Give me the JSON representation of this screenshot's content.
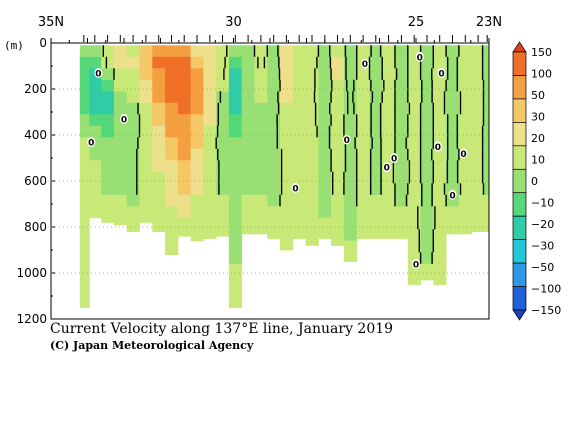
{
  "chart_data": {
    "type": "heatmap",
    "title": "Current Velocity along 137°E line, January 2019",
    "credit": "(C) Japan Meteorological Agency",
    "ylabel": "(m)",
    "x_ticks": [
      {
        "label": "35N",
        "lat": 35
      },
      {
        "label": "30",
        "lat": 30
      },
      {
        "label": "25",
        "lat": 25
      },
      {
        "label": "23N",
        "lat": 23
      }
    ],
    "y_ticks": [
      0,
      200,
      400,
      600,
      800,
      1000,
      1200
    ],
    "xlim": [
      35,
      23
    ],
    "ylim": [
      0,
      1200
    ],
    "colorbar": {
      "labels": [
        "150",
        "100",
        "50",
        "30",
        "20",
        "10",
        "0",
        "−10",
        "−20",
        "−30",
        "−50",
        "−100",
        "−150"
      ],
      "colors": [
        "#e0401c",
        "#f07028",
        "#f4a040",
        "#f4c866",
        "#eee08a",
        "#c8e878",
        "#98e074",
        "#54d87a",
        "#30cca8",
        "#20c8d8",
        "#2c98e8",
        "#2060d8",
        "#1840c0"
      ]
    },
    "profiles": [
      {
        "lat": 34.1,
        "bottom": 1150,
        "v": [
          -10,
          -12,
          -15,
          -18,
          -20,
          -12,
          -10,
          -5,
          0,
          0,
          0,
          0,
          0,
          0,
          0,
          0,
          0,
          0,
          0,
          0,
          0,
          0,
          0,
          0
        ]
      },
      {
        "lat": 33.8,
        "bottom": 760,
        "v": [
          -10,
          -20,
          -25,
          -30,
          -30,
          -22,
          -15,
          -10,
          -5,
          -2,
          0,
          0,
          0,
          0,
          0,
          0,
          0,
          0,
          0,
          0,
          0,
          0,
          0,
          0
        ]
      },
      {
        "lat": 33.45,
        "bottom": 780,
        "v": [
          5,
          2,
          -5,
          -15,
          -25,
          -25,
          -20,
          -12,
          -8,
          -5,
          -5,
          -5,
          -5,
          0,
          0,
          0,
          0,
          0,
          0,
          0,
          0,
          0,
          0,
          0
        ]
      },
      {
        "lat": 33.1,
        "bottom": 790,
        "v": [
          12,
          10,
          5,
          0,
          -5,
          -10,
          -10,
          -8,
          -5,
          -3,
          -2,
          -2,
          -2,
          0,
          0,
          0,
          0,
          0,
          0,
          0,
          0,
          0,
          0,
          0
        ]
      },
      {
        "lat": 32.75,
        "bottom": 820,
        "v": [
          8,
          10,
          8,
          5,
          0,
          -5,
          -5,
          -5,
          -3,
          -2,
          -2,
          -2,
          -2,
          -2,
          0,
          0,
          0,
          0,
          0,
          0,
          0,
          0,
          0,
          0
        ]
      },
      {
        "lat": 32.4,
        "bottom": 780,
        "v": [
          20,
          25,
          20,
          15,
          10,
          8,
          5,
          5,
          5,
          5,
          5,
          5,
          5,
          0,
          0,
          0,
          0,
          0,
          0,
          0,
          0,
          0,
          0,
          0
        ]
      },
      {
        "lat": 32.05,
        "bottom": 820,
        "v": [
          40,
          50,
          45,
          35,
          30,
          25,
          20,
          15,
          12,
          10,
          10,
          8,
          5,
          3,
          0,
          0,
          0,
          0,
          0,
          0,
          0,
          0,
          0,
          0
        ]
      },
      {
        "lat": 31.7,
        "bottom": 920,
        "v": [
          40,
          60,
          60,
          55,
          50,
          40,
          35,
          30,
          25,
          20,
          18,
          15,
          12,
          10,
          8,
          5,
          0,
          0,
          0,
          0,
          0,
          0,
          0,
          0
        ]
      },
      {
        "lat": 31.35,
        "bottom": 840,
        "v": [
          30,
          50,
          60,
          60,
          55,
          50,
          45,
          40,
          35,
          30,
          28,
          25,
          20,
          15,
          10,
          5,
          0,
          0,
          0,
          0,
          0,
          0,
          0,
          0
        ]
      },
      {
        "lat": 31.0,
        "bottom": 860,
        "v": [
          15,
          25,
          30,
          30,
          30,
          30,
          25,
          22,
          20,
          18,
          15,
          12,
          10,
          8,
          5,
          3,
          0,
          0,
          0,
          0,
          0,
          0,
          0,
          0
        ]
      },
      {
        "lat": 30.65,
        "bottom": 850,
        "v": [
          10,
          15,
          15,
          15,
          10,
          10,
          10,
          8,
          5,
          5,
          5,
          5,
          5,
          3,
          0,
          0,
          0,
          0,
          0,
          0,
          0,
          0,
          0,
          0
        ]
      },
      {
        "lat": 30.3,
        "bottom": 840,
        "v": [
          5,
          5,
          3,
          0,
          -2,
          -5,
          -5,
          -5,
          -5,
          -3,
          -2,
          -2,
          -2,
          0,
          0,
          0,
          0,
          0,
          0,
          0,
          0,
          0,
          0,
          0
        ]
      },
      {
        "lat": 29.95,
        "bottom": 1150,
        "v": [
          -10,
          -20,
          -25,
          -25,
          -30,
          -25,
          -20,
          -15,
          -10,
          -8,
          -5,
          -5,
          -5,
          -5,
          -3,
          -3,
          -3,
          -5,
          -5,
          0,
          0,
          0,
          0,
          0
        ]
      },
      {
        "lat": 29.6,
        "bottom": 830,
        "v": [
          -5,
          -10,
          -10,
          -10,
          -10,
          -5,
          -5,
          -5,
          -3,
          -2,
          -2,
          -2,
          -2,
          0,
          0,
          0,
          0,
          0,
          0,
          0,
          0,
          0,
          0,
          0
        ]
      },
      {
        "lat": 29.25,
        "bottom": 830,
        "v": [
          5,
          3,
          0,
          0,
          0,
          -2,
          -2,
          -5,
          -5,
          -2,
          -2,
          -2,
          -2,
          0,
          0,
          0,
          0,
          0,
          0,
          0,
          0,
          0,
          0,
          0
        ]
      },
      {
        "lat": 28.9,
        "bottom": 850,
        "v": [
          -5,
          -8,
          -10,
          -10,
          -5,
          -5,
          -3,
          -2,
          -2,
          -5,
          -5,
          -5,
          -5,
          -2,
          0,
          0,
          0,
          0,
          0,
          0,
          0,
          0,
          0,
          0
        ]
      },
      {
        "lat": 28.55,
        "bottom": 900,
        "v": [
          10,
          12,
          12,
          10,
          10,
          8,
          8,
          5,
          5,
          3,
          3,
          3,
          3,
          2,
          2,
          0,
          0,
          0,
          0,
          0,
          0,
          0,
          0,
          0
        ]
      },
      {
        "lat": 28.2,
        "bottom": 850,
        "v": [
          5,
          5,
          5,
          5,
          3,
          3,
          3,
          2,
          2,
          2,
          2,
          2,
          2,
          0,
          0,
          0,
          0,
          0,
          0,
          0,
          0,
          0,
          0,
          0
        ]
      },
      {
        "lat": 27.85,
        "bottom": 880,
        "v": [
          5,
          5,
          3,
          3,
          2,
          2,
          2,
          2,
          0,
          0,
          0,
          0,
          0,
          0,
          0,
          0,
          0,
          0,
          0,
          0,
          0,
          0,
          0,
          0
        ]
      },
      {
        "lat": 27.5,
        "bottom": 850,
        "v": [
          -5,
          -8,
          -10,
          -10,
          -8,
          -5,
          -5,
          -3,
          -3,
          -5,
          -5,
          -5,
          -5,
          -3,
          -2,
          0,
          0,
          0,
          0,
          0,
          0,
          0,
          0,
          0
        ]
      },
      {
        "lat": 27.15,
        "bottom": 880,
        "v": [
          8,
          10,
          10,
          8,
          8,
          8,
          5,
          5,
          5,
          5,
          5,
          3,
          3,
          0,
          0,
          0,
          0,
          0,
          0,
          0,
          0,
          0,
          0,
          0
        ]
      },
      {
        "lat": 26.8,
        "bottom": 950,
        "v": [
          -5,
          -5,
          -5,
          -3,
          -2,
          -2,
          -5,
          -5,
          -3,
          -3,
          -3,
          -3,
          -3,
          -2,
          -2,
          -2,
          -2,
          0,
          0,
          0,
          0,
          0,
          0,
          0
        ]
      },
      {
        "lat": 26.45,
        "bottom": 850,
        "v": [
          5,
          5,
          5,
          8,
          8,
          5,
          5,
          5,
          5,
          3,
          3,
          3,
          3,
          2,
          0,
          0,
          0,
          0,
          0,
          0,
          0,
          0,
          0,
          0
        ]
      },
      {
        "lat": 26.1,
        "bottom": 850,
        "v": [
          -3,
          -5,
          -5,
          -5,
          -3,
          -3,
          -3,
          -3,
          -2,
          -2,
          -2,
          -2,
          -2,
          0,
          0,
          0,
          0,
          0,
          0,
          0,
          0,
          0,
          0,
          0
        ]
      },
      {
        "lat": 25.75,
        "bottom": 850,
        "v": [
          5,
          5,
          5,
          3,
          3,
          5,
          5,
          5,
          3,
          3,
          3,
          3,
          3,
          2,
          0,
          0,
          0,
          0,
          0,
          0,
          0,
          0,
          0,
          0
        ]
      },
      {
        "lat": 25.4,
        "bottom": 850,
        "v": [
          -5,
          -5,
          -3,
          -3,
          -3,
          -5,
          -5,
          -5,
          -3,
          -3,
          -5,
          -5,
          -3,
          -2,
          0,
          0,
          0,
          0,
          0,
          0,
          0,
          0,
          0,
          0
        ]
      },
      {
        "lat": 25.05,
        "bottom": 1050,
        "v": [
          5,
          5,
          3,
          3,
          3,
          3,
          5,
          5,
          5,
          3,
          3,
          3,
          3,
          3,
          2,
          2,
          2,
          2,
          2,
          0,
          0,
          0,
          0,
          0
        ]
      },
      {
        "lat": 24.7,
        "bottom": 1030,
        "v": [
          -5,
          -5,
          -3,
          -2,
          -2,
          -3,
          -5,
          -5,
          -5,
          -3,
          -3,
          -3,
          -2,
          -2,
          -5,
          -5,
          -3,
          -3,
          -2,
          0,
          0,
          0,
          0,
          0
        ]
      },
      {
        "lat": 24.35,
        "bottom": 1050,
        "v": [
          5,
          5,
          5,
          3,
          3,
          3,
          5,
          5,
          5,
          5,
          3,
          3,
          3,
          3,
          3,
          3,
          3,
          3,
          3,
          0,
          0,
          0,
          0,
          0
        ]
      },
      {
        "lat": 24.0,
        "bottom": 830,
        "v": [
          -5,
          -3,
          -3,
          -3,
          -5,
          -5,
          -3,
          -3,
          -3,
          -3,
          -2,
          -2,
          -5,
          -3,
          0,
          0,
          0,
          0,
          0,
          0,
          0,
          0,
          0,
          0
        ]
      },
      {
        "lat": 23.65,
        "bottom": 830,
        "v": [
          5,
          5,
          5,
          5,
          3,
          3,
          5,
          5,
          5,
          3,
          3,
          3,
          3,
          0,
          0,
          0,
          0,
          0,
          0,
          0,
          0,
          0,
          0,
          0
        ]
      },
      {
        "lat": 23.3,
        "bottom": 820,
        "v": [
          3,
          3,
          3,
          3,
          3,
          3,
          3,
          3,
          3,
          3,
          3,
          3,
          3,
          0,
          0,
          0,
          0,
          0,
          0,
          0,
          0,
          0,
          0,
          0
        ]
      },
      {
        "lat": 23.05,
        "bottom": 820,
        "v": [
          -3,
          -3,
          -3,
          -2,
          -2,
          -2,
          -2,
          -3,
          -3,
          -3,
          -3,
          -3,
          -2,
          0,
          0,
          0,
          0,
          0,
          0,
          0,
          0,
          0,
          0,
          0
        ]
      }
    ],
    "zero_labels": [
      {
        "lat": 33.7,
        "depth": 130,
        "text": "0"
      },
      {
        "lat": 33.0,
        "depth": 330,
        "text": "0"
      },
      {
        "lat": 33.9,
        "depth": 430,
        "text": "0"
      },
      {
        "lat": 28.3,
        "depth": 630,
        "text": "0"
      },
      {
        "lat": 26.4,
        "depth": 90,
        "text": "0"
      },
      {
        "lat": 26.9,
        "depth": 420,
        "text": "0"
      },
      {
        "lat": 25.8,
        "depth": 540,
        "text": "0"
      },
      {
        "lat": 25.6,
        "depth": 500,
        "text": "0"
      },
      {
        "lat": 24.9,
        "depth": 60,
        "text": "0"
      },
      {
        "lat": 24.3,
        "depth": 130,
        "text": "0"
      },
      {
        "lat": 24.4,
        "depth": 450,
        "text": "0"
      },
      {
        "lat": 23.7,
        "depth": 480,
        "text": "0"
      },
      {
        "lat": 24.0,
        "depth": 660,
        "text": "0"
      },
      {
        "lat": 25.0,
        "depth": 960,
        "text": "0"
      }
    ]
  }
}
